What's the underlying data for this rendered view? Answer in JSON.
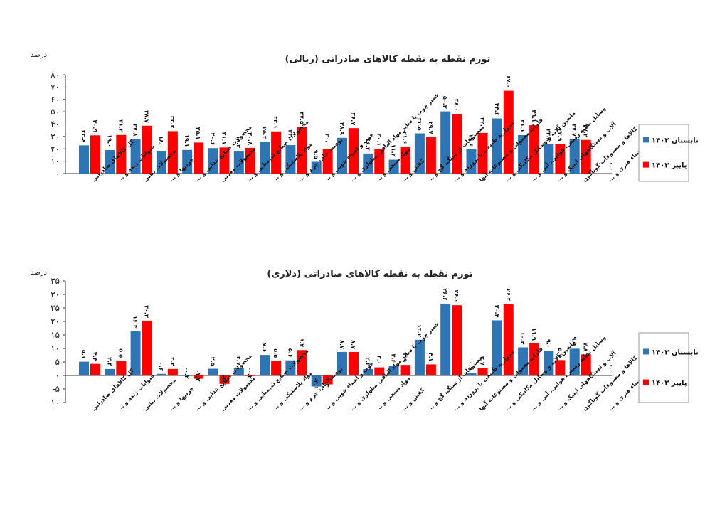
{
  "chart_data": [
    {
      "type": "bar",
      "title": "تورم نقطه به نقطه کالاهای صادراتی (ریالی)",
      "unit_label": "درصد",
      "ylim": [
        0,
        80
      ],
      "yticks": [
        "۰",
        "۱۰",
        "۲۰",
        "۳۰",
        "۴۰",
        "۵۰",
        "۶۰",
        "۷۰",
        "۸۰"
      ],
      "ytick_values": [
        0,
        10,
        20,
        30,
        40,
        50,
        60,
        70,
        80
      ],
      "legend_position": "right",
      "categories": [
        "کل کالاهای صادراتی",
        "حیوانات زنده و ...",
        "محصولات نباتی",
        "چربیها و ...",
        "محصولات صنایع غذایی و ...",
        "محصولات معدنی",
        "محصولات صنایع شیمیایی و ...",
        "مواد پلاستیکی و ...",
        "پوست خام، چرم و ...",
        "چوب و اشیاء چوبی و ...",
        "خمیر چوب یا سایر مواد الیافی سلولزی و ...",
        "مواد نسجی و ...",
        "کفش و ...",
        "مصنوعات از سنگ، گچ و ...",
        "مروارید طبیعی یا پرورده و ...",
        "فلزات معمولی و مصنوعات آنها",
        "ماشین آلات و وسایل مکانیکی و ...",
        "وسایل نقلیه زمینی، هوایی، آبی و ...",
        "آلات و دستگاههای اپتیک و ...",
        "کالاها و مصنوعات گوناگون",
        "اشیاء هنری و ..."
      ],
      "series": [
        {
          "name": "تابستان ۱۴۰۳",
          "color": "#2E75B6",
          "values": [
            22.8,
            19.0,
            27.8,
            18.0,
            19.1,
            20.6,
            18.4,
            25.4,
            23.0,
            9.5,
            28.9,
            16.2,
            11.2,
            32.5,
            50.3,
            19.6,
            44.6,
            31.1,
            23.8,
            27.7,
            0.0
          ],
          "labels": [
            "۲۲.۸",
            "۱۹.۰",
            "۲۷.۸",
            "۱۸.۰",
            "۱۹.۱",
            "۲۰.۶",
            "۱۸.۴",
            "۲۵.۴",
            "۲۳.۰",
            "۹.۵",
            "۲۸.۹",
            "۱۶.۲",
            "۱۱.۲",
            "۳۲.۵",
            "۵۰.۳",
            "۱۹.۶",
            "۴۴.۶",
            "۳۱.۱",
            "۲۳.۸",
            "۲۷.۷",
            "۰.۰"
          ]
        },
        {
          "name": "پاییز ۱۴۰۳",
          "color": "#FF0000",
          "values": [
            30.9,
            31.2,
            38.7,
            34.3,
            25.1,
            21.1,
            20.8,
            34.1,
            37.5,
            20.0,
            36.7,
            20.1,
            21.6,
            29.7,
            48.0,
            32.9,
            67.0,
            39.1,
            23.9,
            27.2,
            0.0
          ],
          "labels": [
            "۳۰.۹",
            "۳۱.۲",
            "۳۸.۷",
            "۳۴.۳",
            "۲۵.۱",
            "۲۱.۱",
            "۲۰.۸",
            "۳۴.۱",
            "۳۷.۵",
            "۲۰.۰",
            "۳۶.۷",
            "۲۰.۱",
            "۲۱.۶",
            "۲۹.۷",
            "۴۸.۰",
            "۳۲.۹",
            "۶۷.۰",
            "۳۹.۱",
            "۲۳.۹",
            "۲۷.۲",
            "۰.۰"
          ]
        }
      ]
    },
    {
      "type": "bar",
      "title": "تورم نقطه به نقطه کالاهای صادراتی (دلاری)",
      "unit_label": "درصد",
      "ylim": [
        -10,
        35
      ],
      "yticks": [
        "-۱۰",
        "-۵",
        "۰",
        "۵",
        "۱۰",
        "۱۵",
        "۲۰",
        "۲۵",
        "۳۰",
        "۳۵"
      ],
      "ytick_values": [
        -10,
        -5,
        0,
        5,
        10,
        15,
        20,
        25,
        30,
        35
      ],
      "legend_position": "right",
      "categories": [
        "کل کالاهای صادراتی",
        "حیوانات زنده و ...",
        "محصولات نباتی",
        "چربیها و ...",
        "محصولات صنایع غذایی و ...",
        "محصولات معدنی",
        "محصولات صنایع شیمیایی و ...",
        "مواد پلاستیکی و ...",
        "پوست خام، چرم و ...",
        "چوب و اشیاء چوبی و ...",
        "خمیر چوب یا سایر مواد الیافی سلولزی و ...",
        "مواد نسجی و ...",
        "کفش و ...",
        "مصنوعات از سنگ، گچ و ...",
        "مروارید طبیعی یا پرورده و ...",
        "فلزات معمولی و مصنوعات آنها",
        "ماشین آلات و وسایل مکانیکی و ...",
        "وسایل نقلیه زمینی، هوایی، آبی و ...",
        "آلات و دستگاههای اپتیک و ...",
        "کالاها و مصنوعات گوناگون",
        "اشیاء هنری و ..."
      ],
      "series": [
        {
          "name": "تابستان ۱۴۰۳",
          "color": "#2E75B6",
          "values": [
            5.1,
            2.4,
            16.4,
            0.6,
            -0.2,
            2.5,
            2.7,
            7.6,
            5.6,
            -4.1,
            8.7,
            2.4,
            3.6,
            13.2,
            26.6,
            0.9,
            20.4,
            10.4,
            9.0,
            9.9,
            0.0
          ],
          "labels": [
            "۵.۱",
            "۲.۴",
            "۱۶.۴",
            "۰.۶",
            "-۰.۲",
            "۲.۵",
            "۲.۷",
            "۷.۶",
            "۵.۶",
            "-۴.۱",
            "۸.۷",
            "۲.۴",
            "۳.۶",
            "۱۳.۲",
            "۲۶.۶",
            "۰.۹",
            "۲۰.۴",
            "۱۰.۴",
            "۹.۰",
            "۹.۹",
            "۰.۰"
          ]
        },
        {
          "name": "پاییز ۱۴۰۳",
          "color": "#FF0000",
          "values": [
            4.3,
            5.5,
            20.3,
            2.4,
            -1.2,
            -3.1,
            -0.2,
            5.5,
            9.4,
            -3.3,
            8.7,
            3.0,
            3.9,
            4.1,
            26.0,
            2.7,
            26.4,
            11.9,
            5.7,
            7.8,
            0.0
          ],
          "labels": [
            "۴.۳",
            "۵.۵",
            "۲۰.۳",
            "۲.۴",
            "-۱.۲",
            "-۳.۱",
            "-۰.۲",
            "۵.۵",
            "۹.۴",
            "-۳.۳",
            "۸.۷",
            "۳.۰",
            "۳.۹",
            "۴.۱",
            "۲۶.۰",
            "۲.۷",
            "۲۶.۴",
            "۱۱.۹",
            "۵.۷",
            "۷.۸",
            "۰.۰"
          ]
        }
      ]
    }
  ]
}
